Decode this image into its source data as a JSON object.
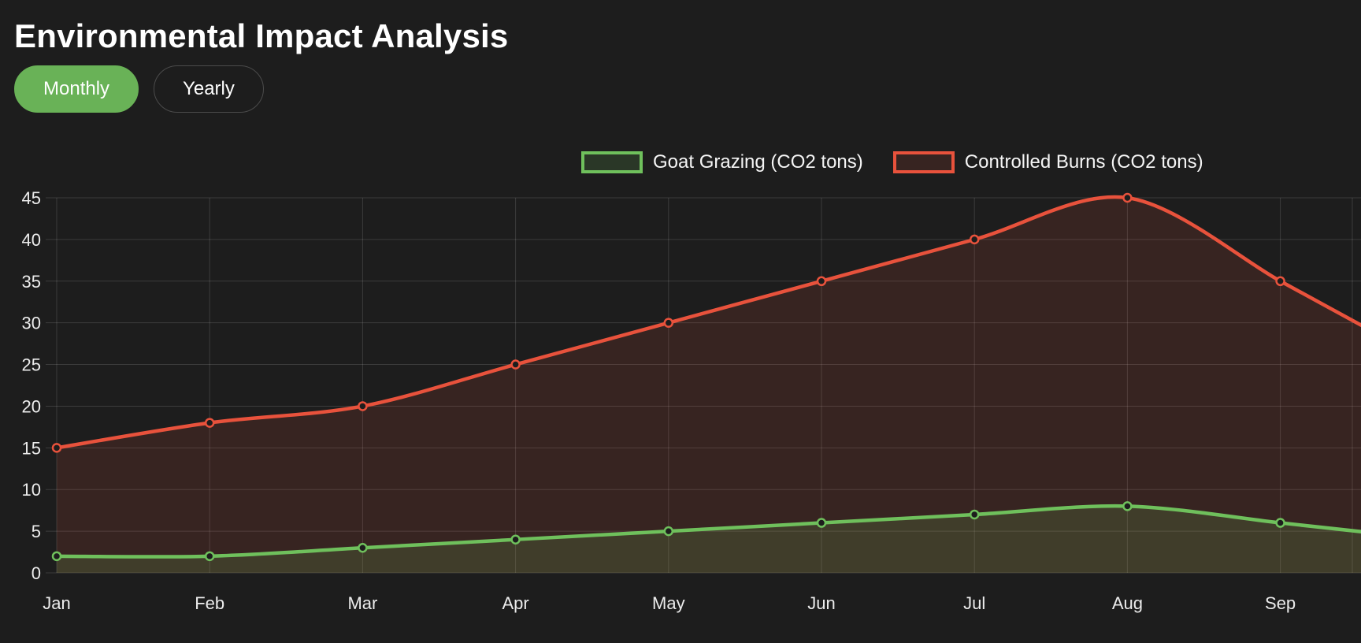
{
  "page": {
    "title": "Environmental Impact Analysis",
    "bg": "#1d1d1d"
  },
  "controls": {
    "monthly_label": "Monthly",
    "yearly_label": "Yearly",
    "active": "Monthly",
    "active_bg": "#69b257"
  },
  "chart_data": {
    "type": "line",
    "title": "",
    "x": [
      "Jan",
      "Feb",
      "Mar",
      "Apr",
      "May",
      "Jun",
      "Jul",
      "Aug",
      "Sep"
    ],
    "series": [
      {
        "name": "Goat Grazing (CO2 tons)",
        "color": "#6fc05c",
        "fill": "rgba(111,192,92,0.16)",
        "values": [
          2,
          2,
          3,
          4,
          5,
          6,
          7,
          8,
          6
        ]
      },
      {
        "name": "Controlled Burns (CO2 tons)",
        "color": "#e8523c",
        "fill": "rgba(232,82,60,0.13)",
        "values": [
          15,
          18,
          20,
          25,
          30,
          35,
          40,
          45,
          35
        ]
      }
    ],
    "ylim": [
      0,
      45
    ],
    "yticks": [
      0,
      5,
      10,
      15,
      20,
      25,
      30,
      35,
      40,
      45
    ],
    "grid": true,
    "legend_position": "top",
    "area_fill": true,
    "clipped_at_right_edge": true
  }
}
